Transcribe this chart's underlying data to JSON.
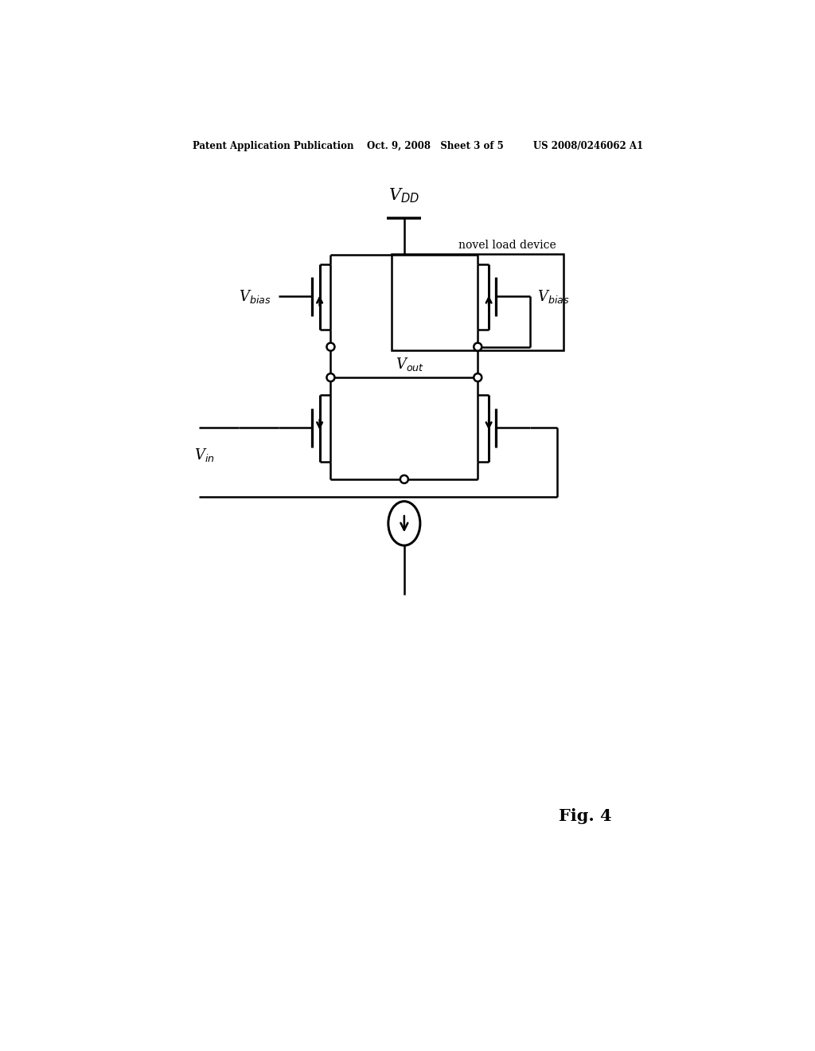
{
  "bg_color": "#ffffff",
  "line_color": "#000000",
  "lw": 1.8,
  "header": "Patent Application Publication    Oct. 9, 2008   Sheet 3 of 5         US 2008/0246062 A1",
  "fig_label": "Fig. 4",
  "novel_load_label": "novel load device",
  "vdd_label": "V$_{DD}$",
  "vbias_left": "V$_{bias}$",
  "vbias_right": "V$_{bias}$",
  "vout_label": "V$_{out}$",
  "vin_label": "V$_{in}$",
  "figsize": [
    10.24,
    13.2
  ],
  "dpi": 100,
  "xlim": [
    0,
    10.24
  ],
  "ylim": [
    0,
    13.2
  ]
}
